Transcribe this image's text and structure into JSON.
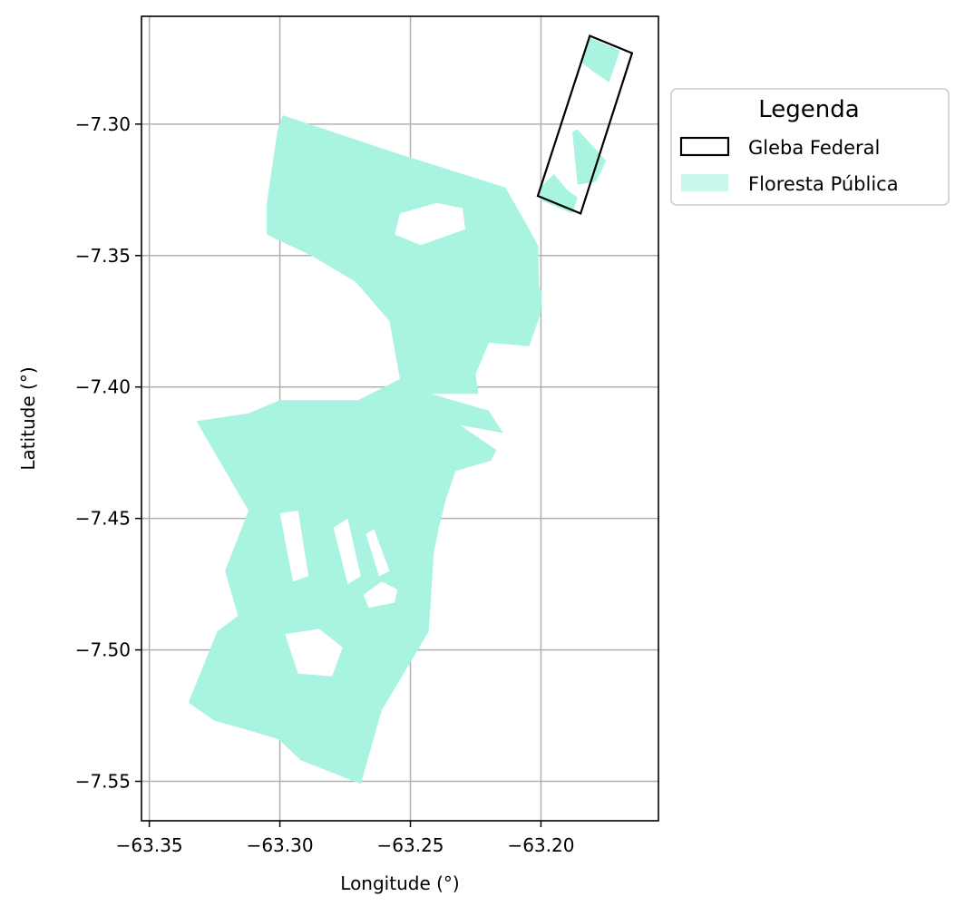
{
  "map": {
    "type": "choropleth-map",
    "xlabel": "Longitude (°)",
    "ylabel": "Latitude (°)",
    "xlim": [
      -63.353,
      -63.155
    ],
    "ylim": [
      -7.565,
      -7.259
    ],
    "x_ticks": [
      {
        "value": -63.35,
        "label": "−63.35"
      },
      {
        "value": -63.3,
        "label": "−63.30"
      },
      {
        "value": -63.25,
        "label": "−63.25"
      },
      {
        "value": -63.2,
        "label": "−63.20"
      }
    ],
    "y_ticks": [
      {
        "value": -7.3,
        "label": "−7.30"
      },
      {
        "value": -7.35,
        "label": "−7.35"
      },
      {
        "value": -7.4,
        "label": "−7.40"
      },
      {
        "value": -7.45,
        "label": "−7.45"
      },
      {
        "value": -7.5,
        "label": "−7.50"
      },
      {
        "value": -7.55,
        "label": "−7.55"
      }
    ],
    "grid": true,
    "legend": {
      "title": "Legenda",
      "position": "outside-top-right",
      "entries": [
        {
          "label": "Gleba Federal",
          "style": "outline",
          "color": "#000000"
        },
        {
          "label": "Floresta Pública",
          "style": "fill",
          "color": "#a8f4e0"
        }
      ]
    },
    "layers": {
      "gleba_federal": {
        "name": "Gleba Federal",
        "color": "#000000",
        "polygon": [
          [
            -63.1813,
            -7.2664
          ],
          [
            -63.1651,
            -7.273
          ],
          [
            -63.1848,
            -7.334
          ],
          [
            -63.2012,
            -7.3273
          ]
        ]
      },
      "floresta_publica": {
        "name": "Floresta Pública",
        "color": "#a8f4e0",
        "polygons": [
          [
            [
              -63.2989,
              -7.2966
            ],
            [
              -63.256,
              -7.3108
            ],
            [
              -63.2136,
              -7.3241
            ],
            [
              -63.2053,
              -7.3386
            ],
            [
              -63.2011,
              -7.3463
            ],
            [
              -63.2007,
              -7.362
            ],
            [
              -63.1996,
              -7.364
            ],
            [
              -63.2001,
              -7.372
            ],
            [
              -63.2045,
              -7.3845
            ],
            [
              -63.22,
              -7.3832
            ],
            [
              -63.225,
              -7.395
            ],
            [
              -63.224,
              -7.4026
            ],
            [
              -63.242,
              -7.4026
            ],
            [
              -63.22,
              -7.409
            ],
            [
              -63.2145,
              -7.4175
            ],
            [
              -63.231,
              -7.4145
            ],
            [
              -63.217,
              -7.424
            ],
            [
              -63.2192,
              -7.428
            ],
            [
              -63.2327,
              -7.432
            ],
            [
              -63.2362,
              -7.442
            ],
            [
              -63.239,
              -7.453
            ],
            [
              -63.241,
              -7.463
            ],
            [
              -63.243,
              -7.493
            ],
            [
              -63.261,
              -7.523
            ],
            [
              -63.269,
              -7.551
            ],
            [
              -63.292,
              -7.542
            ],
            [
              -63.3005,
              -7.534
            ],
            [
              -63.314,
              -7.53
            ],
            [
              -63.325,
              -7.527
            ],
            [
              -63.335,
              -7.52
            ],
            [
              -63.324,
              -7.493
            ],
            [
              -63.316,
              -7.487
            ],
            [
              -63.321,
              -7.47
            ],
            [
              -63.312,
              -7.447
            ],
            [
              -63.332,
              -7.413
            ],
            [
              -63.312,
              -7.41
            ],
            [
              -63.3,
              -7.405
            ],
            [
              -63.27,
              -7.405
            ],
            [
              -63.254,
              -7.397
            ],
            [
              -63.258,
              -7.375
            ],
            [
              -63.271,
              -7.36
            ],
            [
              -63.288,
              -7.35
            ],
            [
              -63.305,
              -7.342
            ],
            [
              -63.305,
              -7.33
            ],
            [
              -63.301,
              -7.303
            ]
          ],
          [
            [
              -63.1815,
              -7.267
            ],
            [
              -63.1697,
              -7.272
            ],
            [
              -63.1739,
              -7.284
            ],
            [
              -63.18,
              -7.28
            ],
            [
              -63.185,
              -7.276
            ]
          ],
          [
            [
              -63.188,
              -7.303
            ],
            [
              -63.186,
              -7.323
            ],
            [
              -63.179,
              -7.322
            ],
            [
              -63.175,
              -7.314
            ],
            [
              -63.186,
              -7.302
            ]
          ],
          [
            [
              -63.195,
              -7.319
            ],
            [
              -63.201,
              -7.325
            ],
            [
              -63.2,
              -7.329
            ],
            [
              -63.188,
              -7.334
            ],
            [
              -63.186,
              -7.328
            ],
            [
              -63.19,
              -7.325
            ]
          ]
        ],
        "holes": [
          [
            [
              -63.2795,
              -7.4535
            ],
            [
              -63.274,
              -7.45
            ],
            [
              -63.269,
              -7.472
            ],
            [
              -63.274,
              -7.475
            ]
          ],
          [
            [
              -63.267,
              -7.456
            ],
            [
              -63.264,
              -7.454
            ],
            [
              -63.258,
              -7.47
            ],
            [
              -63.262,
              -7.472
            ]
          ],
          [
            [
              -63.3,
              -7.448
            ],
            [
              -63.293,
              -7.447
            ],
            [
              -63.289,
              -7.472
            ],
            [
              -63.295,
              -7.474
            ]
          ],
          [
            [
              -63.261,
              -7.474
            ],
            [
              -63.255,
              -7.477
            ],
            [
              -63.256,
              -7.482
            ],
            [
              -63.266,
              -7.484
            ],
            [
              -63.268,
              -7.479
            ]
          ],
          [
            [
              -63.254,
              -7.334
            ],
            [
              -63.24,
              -7.33
            ],
            [
              -63.23,
              -7.332
            ],
            [
              -63.229,
              -7.34
            ],
            [
              -63.246,
              -7.346
            ],
            [
              -63.256,
              -7.342
            ]
          ],
          [
            [
              -63.298,
              -7.494
            ],
            [
              -63.285,
              -7.492
            ],
            [
              -63.276,
              -7.499
            ],
            [
              -63.28,
              -7.51
            ],
            [
              -63.293,
              -7.509
            ]
          ]
        ]
      }
    }
  }
}
